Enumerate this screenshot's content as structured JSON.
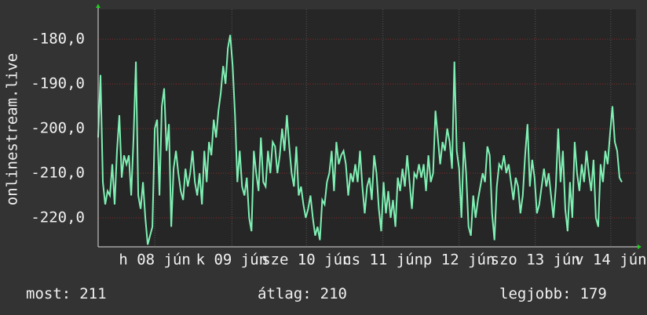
{
  "chart_data": {
    "type": "line",
    "y_label": "onlinestream.live",
    "series": [
      {
        "name": "onlinestream.live",
        "color": "#7ff0b4",
        "values": [
          -202,
          -188,
          -212,
          -217,
          -214,
          -215,
          -208,
          -217,
          -205,
          -197,
          -211,
          -206,
          -208,
          -206,
          -215,
          -202,
          -185,
          -215,
          -218,
          -212,
          -220,
          -226,
          -224,
          -222,
          -200,
          -198,
          -215,
          -195,
          -191,
          -205,
          -199,
          -222,
          -209,
          -205,
          -210,
          -214,
          -216,
          -209,
          -213,
          -210,
          -205,
          -212,
          -215,
          -210,
          -217,
          -205,
          -212,
          -203,
          -206,
          -198,
          -202,
          -196,
          -192,
          -186,
          -190,
          -182,
          -179,
          -186,
          -197,
          -212,
          -205,
          -213,
          -215,
          -211,
          -220,
          -223,
          -205,
          -210,
          -214,
          -202,
          -212,
          -213,
          -205,
          -210,
          -203,
          -204,
          -210,
          -206,
          -200,
          -205,
          -197,
          -204,
          -210,
          -213,
          -204,
          -215,
          -213,
          -217,
          -220,
          -218,
          -215,
          -220,
          -224,
          -222,
          -225,
          -216,
          -217,
          -212,
          -210,
          -205,
          -214,
          -203,
          -208,
          -206,
          -205,
          -208,
          -215,
          -210,
          -212,
          -208,
          -212,
          -205,
          -213,
          -219,
          -213,
          -211,
          -216,
          -206,
          -210,
          -218,
          -223,
          -212,
          -219,
          -214,
          -220,
          -216,
          -222,
          -211,
          -214,
          -209,
          -213,
          -206,
          -212,
          -218,
          -210,
          -211,
          -208,
          -211,
          -208,
          -214,
          -206,
          -212,
          -210,
          -196,
          -202,
          -208,
          -203,
          -205,
          -200,
          -203,
          -209,
          -185,
          -205,
          -209,
          -220,
          -203,
          -210,
          -222,
          -224,
          -215,
          -220,
          -216,
          -213,
          -210,
          -212,
          -204,
          -206,
          -219,
          -225,
          -213,
          -208,
          -209,
          -206,
          -210,
          -208,
          -212,
          -216,
          -211,
          -213,
          -219,
          -215,
          -206,
          -199,
          -213,
          -207,
          -211,
          -219,
          -217,
          -213,
          -209,
          -213,
          -210,
          -215,
          -220,
          -213,
          -200,
          -212,
          -205,
          -218,
          -223,
          -212,
          -220,
          -203,
          -210,
          -214,
          -208,
          -212,
          -205,
          -210,
          -214,
          -207,
          -220,
          -222,
          -208,
          -212,
          -205,
          -208,
          -201,
          -195,
          -203,
          -205,
          -211,
          -212
        ]
      }
    ],
    "xlim": [
      0,
      228
    ],
    "xticks": [
      {
        "value": 24,
        "label": "h 08 jún"
      },
      {
        "value": 56.7,
        "label": "k 09 jún"
      },
      {
        "value": 88.3,
        "label": "sze 10 jún"
      },
      {
        "value": 120.7,
        "label": "cs 11 jún"
      },
      {
        "value": 153,
        "label": "p 12 jún"
      },
      {
        "value": 185.3,
        "label": "szo 13 jún"
      },
      {
        "value": 217.3,
        "label": "v 14 jún"
      }
    ],
    "ylim": [
      -226.5,
      -173.3
    ],
    "yticks": [
      {
        "value": -180,
        "label": "-180,0"
      },
      {
        "value": -190,
        "label": "-190,0"
      },
      {
        "value": -200,
        "label": "-200,0"
      },
      {
        "value": -210,
        "label": "-210,0"
      },
      {
        "value": -220,
        "label": "-220,0"
      }
    ],
    "grid": true,
    "stats": [
      {
        "label": "most:",
        "value": 211
      },
      {
        "label": "átlag:",
        "value": 210
      },
      {
        "label": "legjobb:",
        "value": 179
      }
    ]
  }
}
